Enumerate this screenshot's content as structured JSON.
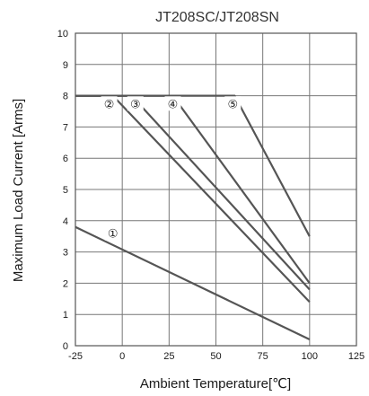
{
  "chart_data": {
    "type": "line",
    "title": "JT208SC/JT208SN",
    "xlabel": "Ambient Temperature[℃]",
    "ylabel": "Maximum Load Current [Arms]",
    "xlim": [
      -25,
      125
    ],
    "ylim": [
      0,
      10
    ],
    "x_ticks": [
      "-25",
      "0",
      "25",
      "50",
      "75",
      "100",
      "125"
    ],
    "y_ticks": [
      "0",
      "1",
      "2",
      "3",
      "4",
      "5",
      "6",
      "7",
      "8",
      "9",
      "10"
    ],
    "grid": true,
    "series": [
      {
        "name": "①",
        "x": [
          -25,
          100
        ],
        "y": [
          3.8,
          0.2
        ]
      },
      {
        "name": "②",
        "x": [
          -25,
          -5,
          100
        ],
        "y": [
          8,
          8,
          1.4
        ]
      },
      {
        "name": "③",
        "x": [
          -25,
          5,
          100
        ],
        "y": [
          8,
          8,
          1.8
        ]
      },
      {
        "name": "④",
        "x": [
          -25,
          27,
          100
        ],
        "y": [
          8,
          8,
          2.0
        ]
      },
      {
        "name": "⑤",
        "x": [
          -25,
          60,
          100
        ],
        "y": [
          8,
          8,
          3.5
        ]
      }
    ],
    "series_label_positions": [
      {
        "x": -5,
        "y": 3.6
      },
      {
        "x": -7,
        "y": 7.75
      },
      {
        "x": 7,
        "y": 7.75
      },
      {
        "x": 27,
        "y": 7.75
      },
      {
        "x": 59,
        "y": 7.75
      }
    ]
  }
}
